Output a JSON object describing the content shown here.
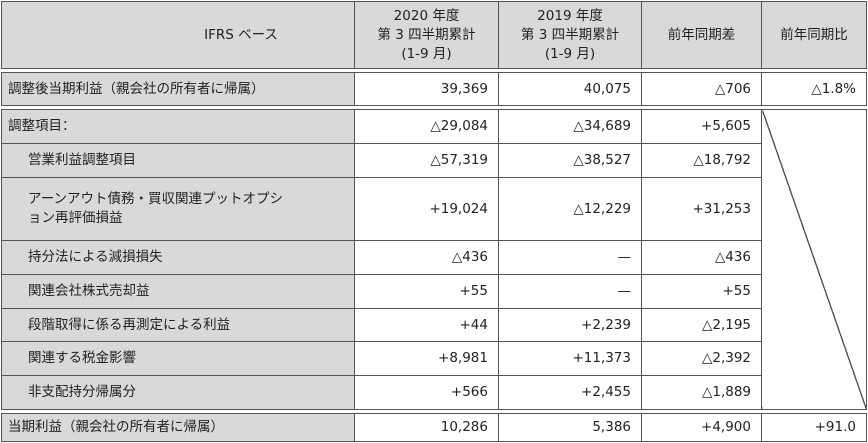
{
  "header": {
    "col_label": "IFRS ベース",
    "col_2020": [
      "2020 年度",
      "第 3 四半期累計",
      "(1-9 月)"
    ],
    "col_2019": [
      "2019 年度",
      "第 3 四半期累計",
      "(1-9 月)"
    ],
    "col_diff": "前年同期差",
    "col_ratio": "前年同期比"
  },
  "rows": [
    {
      "label": "調整後当期利益（親会社の所有者に帰属）",
      "v2020": "39,369",
      "v2019": "40,075",
      "diff": "△706",
      "ratio": "△1.8%"
    },
    {
      "label": "調整項目：",
      "v2020": "△29,084",
      "v2019": "△34,689",
      "diff": "+5,605"
    },
    {
      "label": "営業利益調整項目",
      "v2020": "△57,319",
      "v2019": "△38,527",
      "diff": "△18,792"
    },
    {
      "label_lines": [
        "アーンアウト債務・買収関連プットオプシ",
        "ョン再評価損益"
      ],
      "v2020": "+19,024",
      "v2019": "△12,229",
      "diff": "+31,253"
    },
    {
      "label": "持分法による減損損失",
      "v2020": "△436",
      "v2019": "—",
      "diff": "△436"
    },
    {
      "label": "関連会社株式売却益",
      "v2020": "+55",
      "v2019": "—",
      "diff": "+55"
    },
    {
      "label": "段階取得に係る再測定による利益",
      "v2020": "+44",
      "v2019": "+2,239",
      "diff": "△2,195"
    },
    {
      "label": "関連する税金影響",
      "v2020": "+8,981",
      "v2019": "+11,373",
      "diff": "△2,392"
    },
    {
      "label": "非支配持分帰属分",
      "v2020": "+566",
      "v2019": "+2,455",
      "diff": "△1,889"
    },
    {
      "label": "当期利益（親会社の所有者に帰属）",
      "v2020": "10,286",
      "v2019": "5,386",
      "diff": "+4,900",
      "ratio": "+91.0"
    }
  ]
}
